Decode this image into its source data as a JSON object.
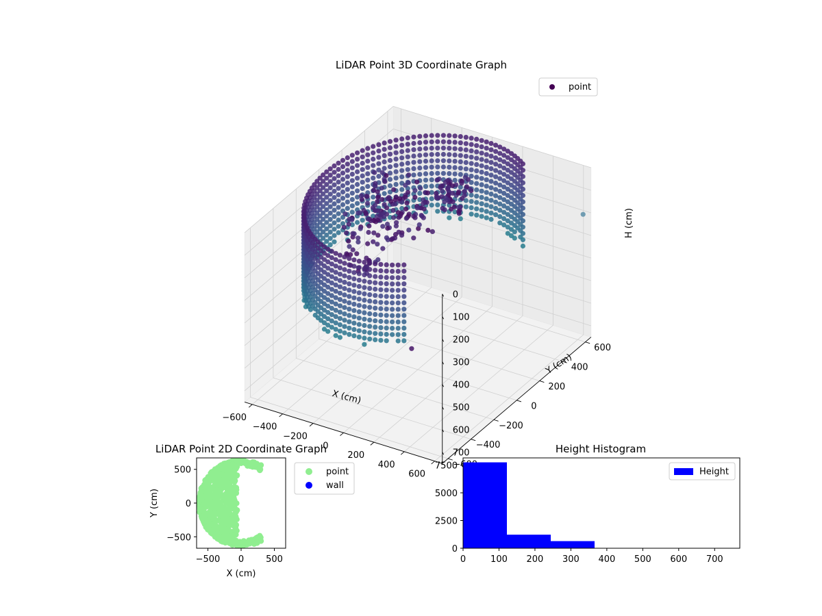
{
  "chart_data": [
    {
      "type": "scatter3d",
      "title": "LiDAR Point 3D Coordinate Graph",
      "xlabel": "X (cm)",
      "ylabel": "Y (cm)",
      "zlabel": "H (cm)",
      "xticks": [
        "−600",
        "−400",
        "−200",
        "0",
        "200",
        "400",
        "600"
      ],
      "yticks": [
        "−600",
        "−400",
        "−200",
        "0",
        "200",
        "400",
        "600"
      ],
      "zticks": [
        "0",
        "100",
        "200",
        "300",
        "400",
        "500",
        "600",
        "700"
      ],
      "xlim": [
        -650,
        650
      ],
      "ylim": [
        -650,
        650
      ],
      "zlim": [
        0,
        750
      ],
      "zaxis_inverted": true,
      "grid": true,
      "legend": {
        "position": "top-right",
        "entries": [
          "point"
        ]
      },
      "colormap": "viridis",
      "series": [
        {
          "name": "point",
          "shape": "partial cylindrical wall, radius about 600, arc from about 60 to 300 degrees (open toward +X), heights 0 to about 370",
          "radius": 600,
          "angle_range_deg": [
            60,
            300
          ],
          "height_range": [
            0,
            370
          ],
          "inner_clusters": [
            {
              "x": -300,
              "y": 100,
              "height_range": [
                0,
                300
              ]
            },
            {
              "x": -150,
              "y": 150,
              "height_range": [
                0,
                250
              ]
            },
            {
              "x": -250,
              "y": -150,
              "height_range": [
                0,
                300
              ]
            },
            {
              "x": 50,
              "y": 250,
              "height_range": [
                0,
                120
              ]
            }
          ],
          "outliers": [
            {
              "x": 620,
              "y": 620,
              "z": 200
            },
            {
              "x": 350,
              "y": -520,
              "z": 360
            }
          ]
        }
      ]
    },
    {
      "type": "scatter",
      "title": "LiDAR Point 2D Coordinate Graph",
      "xlabel": "X (cm)",
      "ylabel": "Y (cm)",
      "xticks": [
        "−500",
        "0",
        "500"
      ],
      "yticks": [
        "−500",
        "0",
        "500"
      ],
      "xlim": [
        -670,
        670
      ],
      "ylim": [
        -670,
        670
      ],
      "legend": {
        "position": "outside-right",
        "entries": [
          "point",
          "wall"
        ]
      },
      "series": [
        {
          "name": "point",
          "color": "#90ee90",
          "shape": "C-shaped arc radius ~600 from 60 to 300 degrees plus dense fill x from -600 to -100"
        },
        {
          "name": "wall",
          "color": "#0000ff"
        }
      ]
    },
    {
      "type": "histogram",
      "title": "Height Histogram",
      "xticks": [
        "0",
        "100",
        "200",
        "300",
        "400",
        "500",
        "600",
        "700"
      ],
      "yticks": [
        "0",
        "2500",
        "5000",
        "7500"
      ],
      "xlim": [
        0,
        770
      ],
      "ylim": [
        0,
        8150
      ],
      "legend": {
        "position": "top-right",
        "entries": [
          "Height"
        ]
      },
      "series": [
        {
          "name": "Height",
          "color": "#0000ff",
          "bins": [
            {
              "x0": 0,
              "x1": 122,
              "count": 7750
            },
            {
              "x0": 122,
              "x1": 244,
              "count": 1220
            },
            {
              "x0": 244,
              "x1": 366,
              "count": 640
            },
            {
              "x0": 366,
              "x1": 488,
              "count": 0
            },
            {
              "x0": 488,
              "x1": 610,
              "count": 0
            },
            {
              "x0": 610,
              "x1": 732,
              "count": 0
            }
          ]
        }
      ]
    }
  ]
}
